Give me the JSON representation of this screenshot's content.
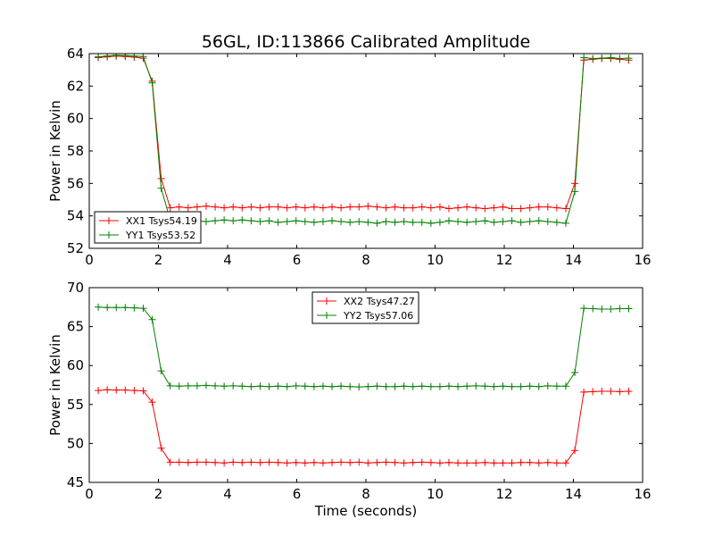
{
  "figure": {
    "title": "56GL, ID:113866 Calibrated Amplitude"
  },
  "chart_data": [
    {
      "type": "line",
      "title": "56GL, ID:113866 Calibrated Amplitude",
      "xlabel": "",
      "ylabel": "Power in Kelvin",
      "xlim": [
        0,
        16
      ],
      "ylim": [
        52,
        64
      ],
      "x_ticks": [
        "0",
        "2",
        "4",
        "6",
        "8",
        "10",
        "12",
        "14",
        "16"
      ],
      "y_ticks": [
        "52",
        "54",
        "56",
        "58",
        "60",
        "62",
        "64"
      ],
      "grid": false,
      "legend_placement": "lower-left",
      "x": [
        0.26,
        0.52,
        0.78,
        1.04,
        1.3,
        1.56,
        1.82,
        2.08,
        2.34,
        2.6,
        2.86,
        3.12,
        3.38,
        3.64,
        3.9,
        4.16,
        4.42,
        4.68,
        4.94,
        5.2,
        5.46,
        5.72,
        5.98,
        6.24,
        6.5,
        6.76,
        7.02,
        7.28,
        7.54,
        7.8,
        8.06,
        8.32,
        8.58,
        8.84,
        9.1,
        9.36,
        9.62,
        9.88,
        10.14,
        10.4,
        10.66,
        10.92,
        11.18,
        11.44,
        11.7,
        11.96,
        12.22,
        12.48,
        12.74,
        13.0,
        13.26,
        13.52,
        13.78,
        14.04,
        14.3,
        14.56,
        14.82,
        15.08,
        15.34,
        15.6
      ],
      "series": [
        {
          "name": "XX1 Tsys54.19",
          "color": "#ff0000",
          "values": [
            63.75,
            63.8,
            63.85,
            63.82,
            63.78,
            63.72,
            62.3,
            56.3,
            54.5,
            54.55,
            54.5,
            54.55,
            54.6,
            54.55,
            54.5,
            54.55,
            54.5,
            54.55,
            54.5,
            54.55,
            54.55,
            54.5,
            54.55,
            54.5,
            54.55,
            54.5,
            54.55,
            54.5,
            54.55,
            54.55,
            54.6,
            54.55,
            54.5,
            54.55,
            54.5,
            54.5,
            54.55,
            54.5,
            54.55,
            54.45,
            54.5,
            54.55,
            54.5,
            54.45,
            54.5,
            54.55,
            54.45,
            54.45,
            54.5,
            54.55,
            54.55,
            54.5,
            54.45,
            56.0,
            63.6,
            63.65,
            63.7,
            63.7,
            63.65,
            63.6
          ]
        },
        {
          "name": "YY1 Tsys53.52",
          "color": "#008000",
          "values": [
            63.8,
            63.85,
            63.9,
            63.88,
            63.85,
            63.82,
            62.2,
            55.7,
            53.75,
            53.7,
            53.75,
            53.7,
            53.65,
            53.7,
            53.75,
            53.7,
            53.75,
            53.7,
            53.65,
            53.7,
            53.6,
            53.65,
            53.7,
            53.65,
            53.6,
            53.65,
            53.7,
            53.65,
            53.6,
            53.65,
            53.6,
            53.55,
            53.65,
            53.6,
            53.65,
            53.6,
            53.6,
            53.55,
            53.6,
            53.7,
            53.65,
            53.6,
            53.65,
            53.7,
            53.6,
            53.65,
            53.7,
            53.6,
            53.65,
            53.7,
            53.65,
            53.6,
            53.55,
            55.5,
            63.75,
            63.7,
            63.72,
            63.75,
            63.7,
            63.72
          ]
        }
      ]
    },
    {
      "type": "line",
      "title": "",
      "xlabel": "Time (seconds)",
      "ylabel": "Power in Kelvin",
      "xlim": [
        0,
        16
      ],
      "ylim": [
        45,
        70
      ],
      "x_ticks": [
        "0",
        "2",
        "4",
        "6",
        "8",
        "10",
        "12",
        "14",
        "16"
      ],
      "y_ticks": [
        "45",
        "50",
        "55",
        "60",
        "65",
        "70"
      ],
      "grid": false,
      "legend_placement": "top-center",
      "x": [
        0.26,
        0.52,
        0.78,
        1.04,
        1.3,
        1.56,
        1.82,
        2.08,
        2.34,
        2.6,
        2.86,
        3.12,
        3.38,
        3.64,
        3.9,
        4.16,
        4.42,
        4.68,
        4.94,
        5.2,
        5.46,
        5.72,
        5.98,
        6.24,
        6.5,
        6.76,
        7.02,
        7.28,
        7.54,
        7.8,
        8.06,
        8.32,
        8.58,
        8.84,
        9.1,
        9.36,
        9.62,
        9.88,
        10.14,
        10.4,
        10.66,
        10.92,
        11.18,
        11.44,
        11.7,
        11.96,
        12.22,
        12.48,
        12.74,
        13.0,
        13.26,
        13.52,
        13.78,
        14.04,
        14.3,
        14.56,
        14.82,
        15.08,
        15.34,
        15.6
      ],
      "series": [
        {
          "name": "XX2 Tsys47.27",
          "color": "#ff0000",
          "values": [
            56.8,
            56.9,
            56.85,
            56.85,
            56.8,
            56.75,
            55.3,
            49.4,
            47.6,
            47.6,
            47.55,
            47.6,
            47.6,
            47.55,
            47.5,
            47.6,
            47.55,
            47.6,
            47.55,
            47.6,
            47.55,
            47.5,
            47.55,
            47.5,
            47.55,
            47.5,
            47.55,
            47.6,
            47.55,
            47.6,
            47.5,
            47.55,
            47.6,
            47.55,
            47.5,
            47.55,
            47.6,
            47.55,
            47.5,
            47.55,
            47.5,
            47.5,
            47.5,
            47.55,
            47.5,
            47.5,
            47.5,
            47.55,
            47.55,
            47.5,
            47.55,
            47.5,
            47.5,
            49.1,
            56.6,
            56.65,
            56.7,
            56.7,
            56.65,
            56.7
          ]
        },
        {
          "name": "YY2 Tsys57.06",
          "color": "#008000",
          "values": [
            67.5,
            67.45,
            67.45,
            67.45,
            67.4,
            67.35,
            65.9,
            59.3,
            57.4,
            57.35,
            57.4,
            57.4,
            57.45,
            57.4,
            57.35,
            57.4,
            57.35,
            57.3,
            57.35,
            57.3,
            57.35,
            57.3,
            57.4,
            57.35,
            57.3,
            57.35,
            57.3,
            57.35,
            57.3,
            57.25,
            57.3,
            57.35,
            57.3,
            57.3,
            57.35,
            57.3,
            57.35,
            57.3,
            57.3,
            57.35,
            57.3,
            57.35,
            57.4,
            57.35,
            57.3,
            57.35,
            57.3,
            57.3,
            57.35,
            57.3,
            57.4,
            57.35,
            57.35,
            59.1,
            67.35,
            67.3,
            67.25,
            67.25,
            67.3,
            67.3
          ]
        }
      ]
    }
  ]
}
